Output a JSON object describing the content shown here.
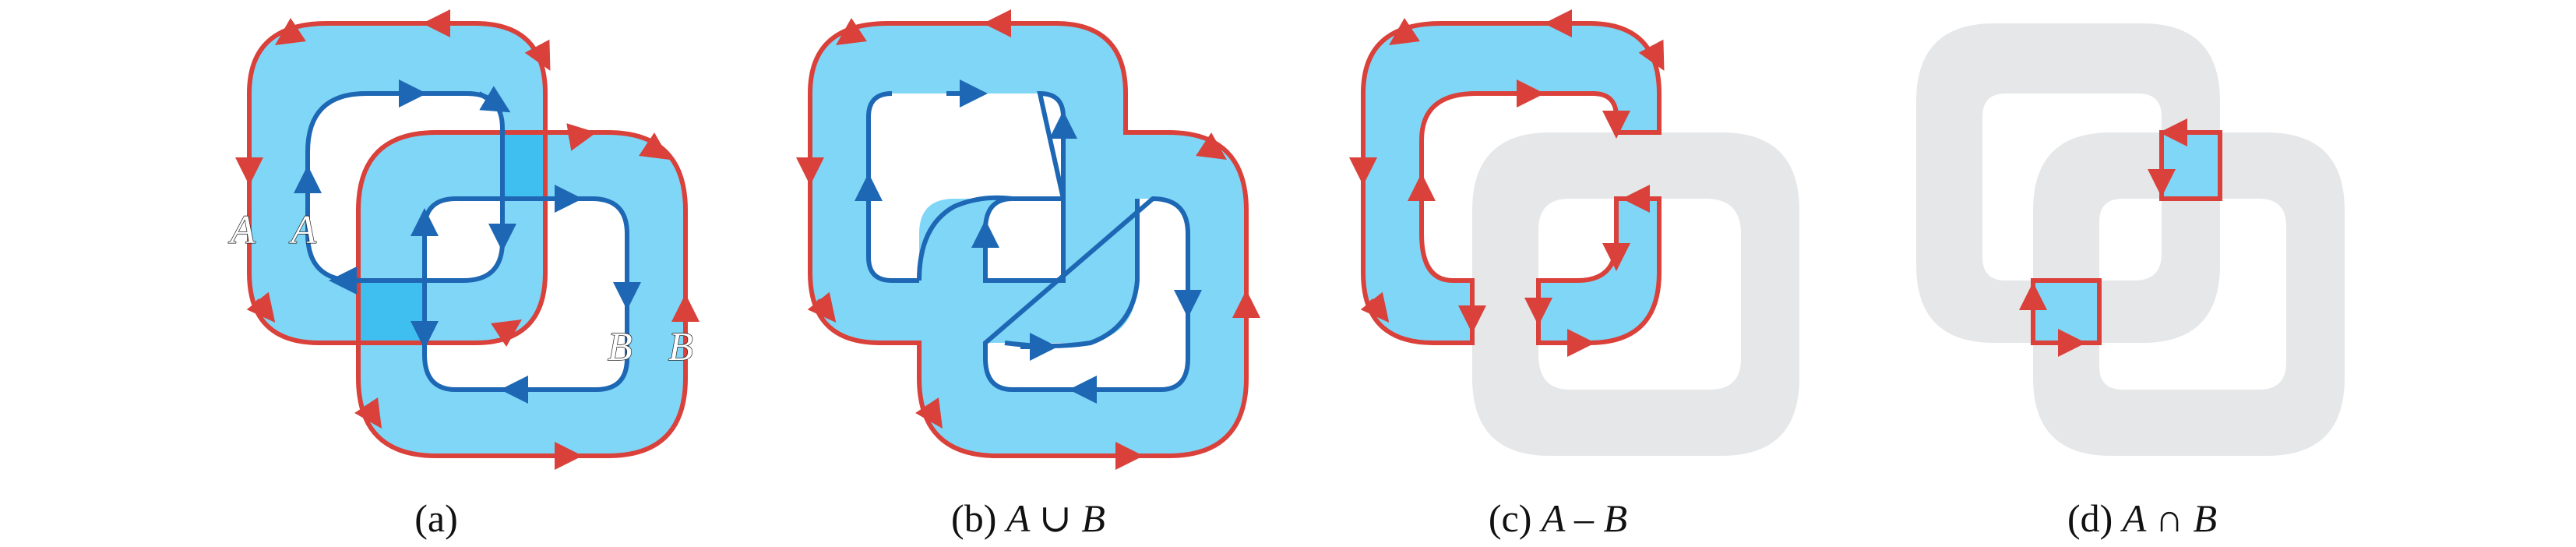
{
  "colors": {
    "region_fill": "#7fd6f6",
    "overlap_fill": "#3fbfef",
    "outer_contour": "#d9413a",
    "inner_contour": "#1d67b4",
    "background_shape": "#e6e7e8",
    "label_text": "#ffffff"
  },
  "panels": [
    {
      "id": "a",
      "caption": "(a)",
      "labels": {
        "outer_a": "A",
        "inner_a": "A",
        "inner_b": "B",
        "outer_b": "B"
      }
    },
    {
      "id": "b",
      "caption_prefix": "(b)",
      "caption_expr": "A ∪ B"
    },
    {
      "id": "c",
      "caption_prefix": "(c)",
      "caption_expr": "A – B"
    },
    {
      "id": "d",
      "caption_prefix": "(d)",
      "caption_expr": "A ∩ B"
    }
  ]
}
